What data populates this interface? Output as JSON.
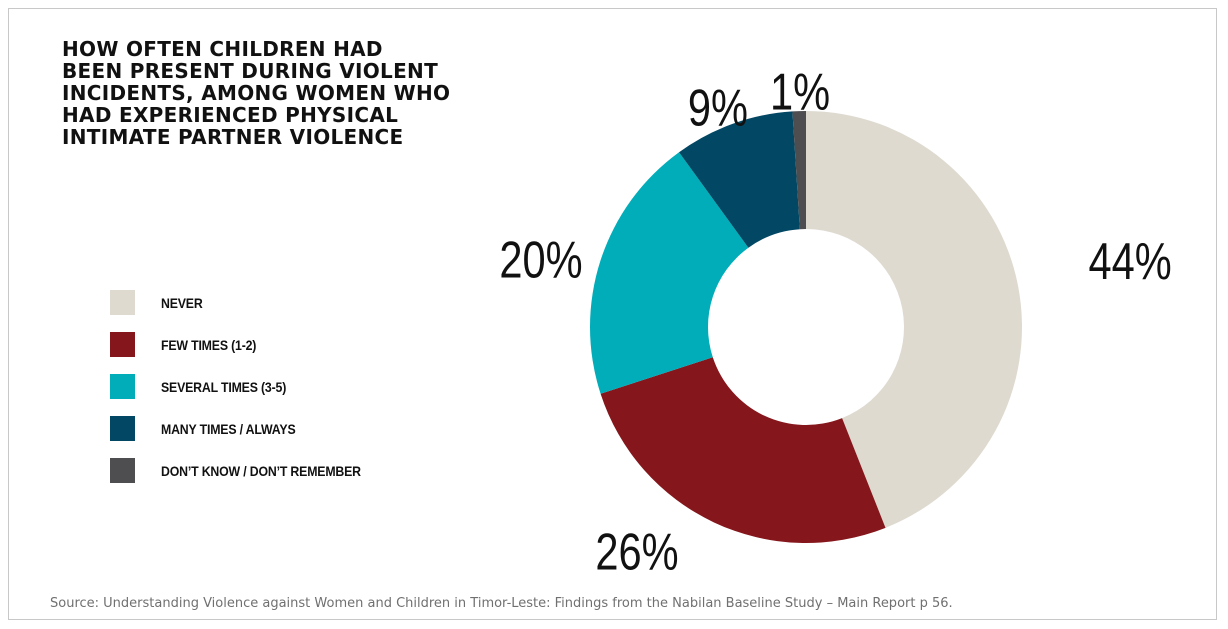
{
  "chart_data": {
    "type": "pie",
    "variant": "donut",
    "title": "HOW OFTEN CHILDREN HAD\nBEEN PRESENT DURING VIOLENT\nINCIDENTS, AMONG WOMEN WHO\nHAD EXPERIENCED PHYSICAL\nINTIMATE PARTNER VIOLENCE",
    "slices": [
      {
        "label": "NEVER",
        "value": 44,
        "display": "44%",
        "color": "#dedad0"
      },
      {
        "label": "FEW TIMES (1-2)",
        "value": 26,
        "display": "26%",
        "color": "#85161b"
      },
      {
        "label": "SEVERAL TIMES (3-5)",
        "value": 20,
        "display": "20%",
        "color": "#00adb9"
      },
      {
        "label": "MANY TIMES / ALWAYS",
        "value": 9,
        "display": "9%",
        "color": "#024763"
      },
      {
        "label": "DON’T KNOW / DON’T REMEMBER",
        "value": 1,
        "display": "1%",
        "color": "#4e4e50"
      }
    ],
    "legend_position": "left"
  },
  "source": "Source: Understanding Violence against Women and Children in Timor-Leste: Findings from the Nabilan Baseline Study – Main Report p 56."
}
